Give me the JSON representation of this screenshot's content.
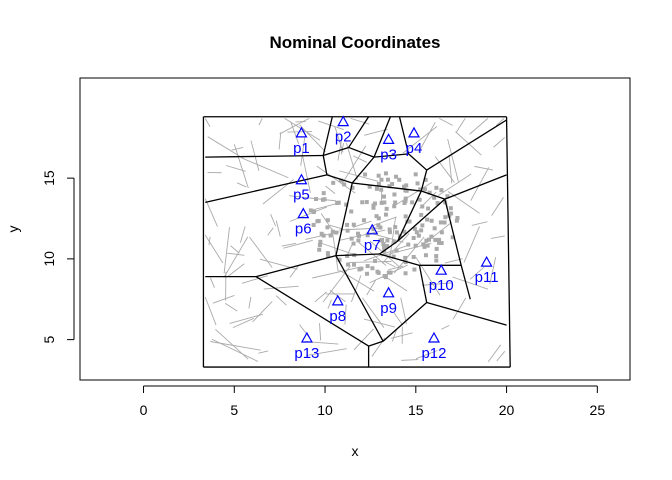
{
  "chart_data": {
    "type": "scatter",
    "title": "Nominal Coordinates",
    "xlabel": "x",
    "ylabel": "y",
    "xlim": [
      -3.5,
      26.8
    ],
    "ylim": [
      2.5,
      21.2
    ],
    "xticks": [
      0,
      5,
      10,
      15,
      20,
      25
    ],
    "yticks": [
      5,
      10,
      15
    ],
    "grid": false,
    "colors": {
      "points": "#0000ff",
      "cells": "#000000",
      "streets": "#aaaaaa",
      "cases": "#aaaaaa"
    },
    "pumps": [
      {
        "label": "p1",
        "x": 8.7,
        "y": 17.8
      },
      {
        "label": "p2",
        "x": 11.0,
        "y": 18.5
      },
      {
        "label": "p3",
        "x": 13.5,
        "y": 17.4
      },
      {
        "label": "p4",
        "x": 14.9,
        "y": 17.8
      },
      {
        "label": "p5",
        "x": 8.7,
        "y": 14.9
      },
      {
        "label": "p6",
        "x": 8.8,
        "y": 12.8
      },
      {
        "label": "p7",
        "x": 12.6,
        "y": 11.8
      },
      {
        "label": "p8",
        "x": 10.7,
        "y": 7.4
      },
      {
        "label": "p9",
        "x": 13.5,
        "y": 7.9
      },
      {
        "label": "p10",
        "x": 16.4,
        "y": 9.3
      },
      {
        "label": "p11",
        "x": 18.9,
        "y": 9.8
      },
      {
        "label": "p12",
        "x": 16.0,
        "y": 5.1
      },
      {
        "label": "p13",
        "x": 9.0,
        "y": 5.1
      }
    ],
    "cells": [
      {
        "x": [
          3.3,
          20.0
        ],
        "y": [
          18.8,
          18.8
        ]
      },
      {
        "x": [
          3.3,
          3.3
        ],
        "y": [
          18.8,
          3.3
        ]
      },
      {
        "x": [
          3.3,
          20.2
        ],
        "y": [
          3.3,
          3.3
        ]
      },
      {
        "x": [
          20.0,
          20.2
        ],
        "y": [
          18.8,
          3.3
        ]
      },
      {
        "x": [
          3.4,
          9.9
        ],
        "y": [
          16.3,
          16.4
        ]
      },
      {
        "x": [
          9.9,
          10.4
        ],
        "y": [
          16.4,
          18.8
        ]
      },
      {
        "x": [
          9.9,
          11.3
        ],
        "y": [
          16.4,
          16.9
        ]
      },
      {
        "x": [
          11.3,
          12.4
        ],
        "y": [
          16.9,
          18.8
        ]
      },
      {
        "x": [
          11.3,
          12.7
        ],
        "y": [
          16.9,
          16.3
        ]
      },
      {
        "x": [
          12.7,
          13.6
        ],
        "y": [
          16.3,
          18.8
        ]
      },
      {
        "x": [
          12.7,
          14.6
        ],
        "y": [
          16.3,
          16.5
        ]
      },
      {
        "x": [
          14.6,
          14.1
        ],
        "y": [
          16.5,
          18.8
        ]
      },
      {
        "x": [
          14.6,
          15.6
        ],
        "y": [
          16.5,
          15.5
        ]
      },
      {
        "x": [
          15.6,
          20.0
        ],
        "y": [
          15.5,
          18.6
        ]
      },
      {
        "x": [
          9.9,
          10.1
        ],
        "y": [
          16.4,
          15.2
        ]
      },
      {
        "x": [
          3.4,
          10.1
        ],
        "y": [
          13.5,
          15.2
        ]
      },
      {
        "x": [
          10.1,
          11.5
        ],
        "y": [
          15.2,
          14.7
        ]
      },
      {
        "x": [
          11.5,
          12.7
        ],
        "y": [
          14.7,
          16.3
        ]
      },
      {
        "x": [
          11.5,
          15.3
        ],
        "y": [
          14.7,
          14.2
        ]
      },
      {
        "x": [
          15.3,
          15.6
        ],
        "y": [
          14.2,
          15.5
        ]
      },
      {
        "x": [
          15.3,
          16.6
        ],
        "y": [
          14.2,
          13.7
        ]
      },
      {
        "x": [
          16.6,
          20.0
        ],
        "y": [
          13.7,
          15.2
        ]
      },
      {
        "x": [
          16.6,
          17.5
        ],
        "y": [
          13.7,
          9.6
        ]
      },
      {
        "x": [
          15.3,
          14.0
        ],
        "y": [
          14.2,
          11.1
        ]
      },
      {
        "x": [
          14.0,
          13.0
        ],
        "y": [
          11.1,
          10.3
        ]
      },
      {
        "x": [
          14.0,
          16.6
        ],
        "y": [
          11.1,
          13.7
        ]
      },
      {
        "x": [
          13.0,
          10.6
        ],
        "y": [
          10.3,
          10.2
        ]
      },
      {
        "x": [
          10.6,
          11.5
        ],
        "y": [
          10.2,
          14.7
        ]
      },
      {
        "x": [
          10.6,
          6.2
        ],
        "y": [
          10.2,
          8.9
        ]
      },
      {
        "x": [
          3.4,
          6.2
        ],
        "y": [
          8.9,
          8.9
        ]
      },
      {
        "x": [
          6.2,
          12.4
        ],
        "y": [
          8.9,
          4.6
        ]
      },
      {
        "x": [
          12.4,
          12.4
        ],
        "y": [
          4.6,
          3.3
        ]
      },
      {
        "x": [
          12.4,
          13.2
        ],
        "y": [
          4.6,
          4.9
        ]
      },
      {
        "x": [
          13.2,
          15.6
        ],
        "y": [
          4.9,
          7.3
        ]
      },
      {
        "x": [
          15.6,
          20.0
        ],
        "y": [
          7.3,
          5.9
        ]
      },
      {
        "x": [
          15.6,
          15.2
        ],
        "y": [
          7.3,
          9.6
        ]
      },
      {
        "x": [
          15.2,
          17.5
        ],
        "y": [
          9.6,
          9.6
        ]
      },
      {
        "x": [
          15.2,
          13.0
        ],
        "y": [
          9.6,
          10.3
        ]
      },
      {
        "x": [
          13.2,
          10.6
        ],
        "y": [
          4.9,
          10.2
        ]
      },
      {
        "x": [
          17.5,
          18.0
        ],
        "y": [
          9.6,
          7.5
        ]
      }
    ]
  }
}
